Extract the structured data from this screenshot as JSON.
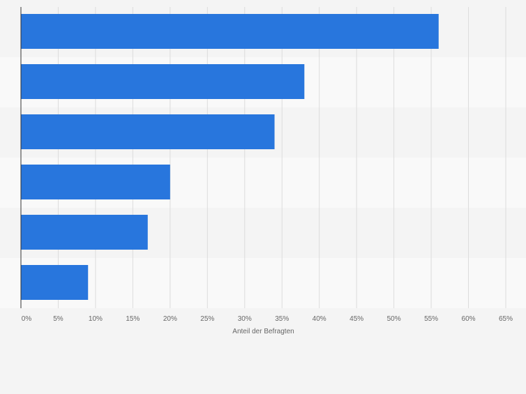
{
  "chart_data": {
    "type": "bar",
    "orientation": "horizontal",
    "categories": [
      "",
      "",
      "",
      "",
      "",
      ""
    ],
    "values": [
      56,
      38,
      34,
      20,
      17,
      9
    ],
    "xlabel": "Anteil der Befragten",
    "ylabel": "",
    "xlim": [
      0,
      65
    ],
    "xticks": [
      "0%",
      "5%",
      "10%",
      "15%",
      "20%",
      "25%",
      "30%",
      "35%",
      "40%",
      "45%",
      "50%",
      "55%",
      "60%",
      "65%"
    ],
    "grid": true,
    "bar_color": "#2876dd",
    "band_colors": [
      "#f4f4f4",
      "#f9f9f9"
    ]
  }
}
